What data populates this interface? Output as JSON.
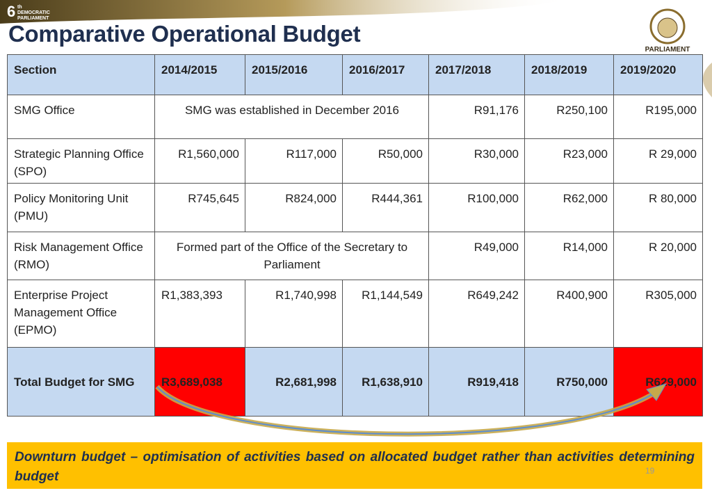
{
  "logo": {
    "numeral": "6",
    "suffix": "th",
    "line1": "DEMOCRATIC",
    "line2": "PARLIAMENT"
  },
  "title": "Comparative Operational Budget",
  "crest_label": "PARLIAMENT",
  "table": {
    "header": [
      "Section",
      "2014/2015",
      "2015/2016",
      "2016/2017",
      "2017/2018",
      "2018/2019",
      "2019/2020"
    ],
    "rows": [
      [
        "SMG Office",
        "SMG was established in December 2016",
        "R91,176",
        "R250,100",
        "R195,000"
      ],
      [
        "Strategic Planning Office (SPO)",
        "R1,560,000",
        "R117,000",
        "R50,000",
        "R30,000",
        "R23,000",
        "R  29,000"
      ],
      [
        "Policy Monitoring Unit (PMU)",
        "R745,645",
        "R824,000",
        "R444,361",
        "R100,000",
        "R62,000",
        "R 80,000"
      ],
      [
        "Risk Management Office (RMO)",
        "Formed part of the Office of the Secretary to Parliament",
        "R49,000",
        "R14,000",
        "R 20,000"
      ],
      [
        "Enterprise Project Management Office (EPMO)",
        "R1,383,393",
        "R1,740,998",
        "R1,144,549",
        "R649,242",
        "R400,900",
        "R305,000"
      ],
      [
        "Total Budget for SMG",
        "R3,689,038",
        "R2,681,998",
        "R1,638,910",
        "R919,418",
        "R750,000",
        "R629,000"
      ]
    ]
  },
  "footer": "Downturn budget – optimisation of activities based on allocated budget rather than activities determining budget",
  "page_number": "19"
}
